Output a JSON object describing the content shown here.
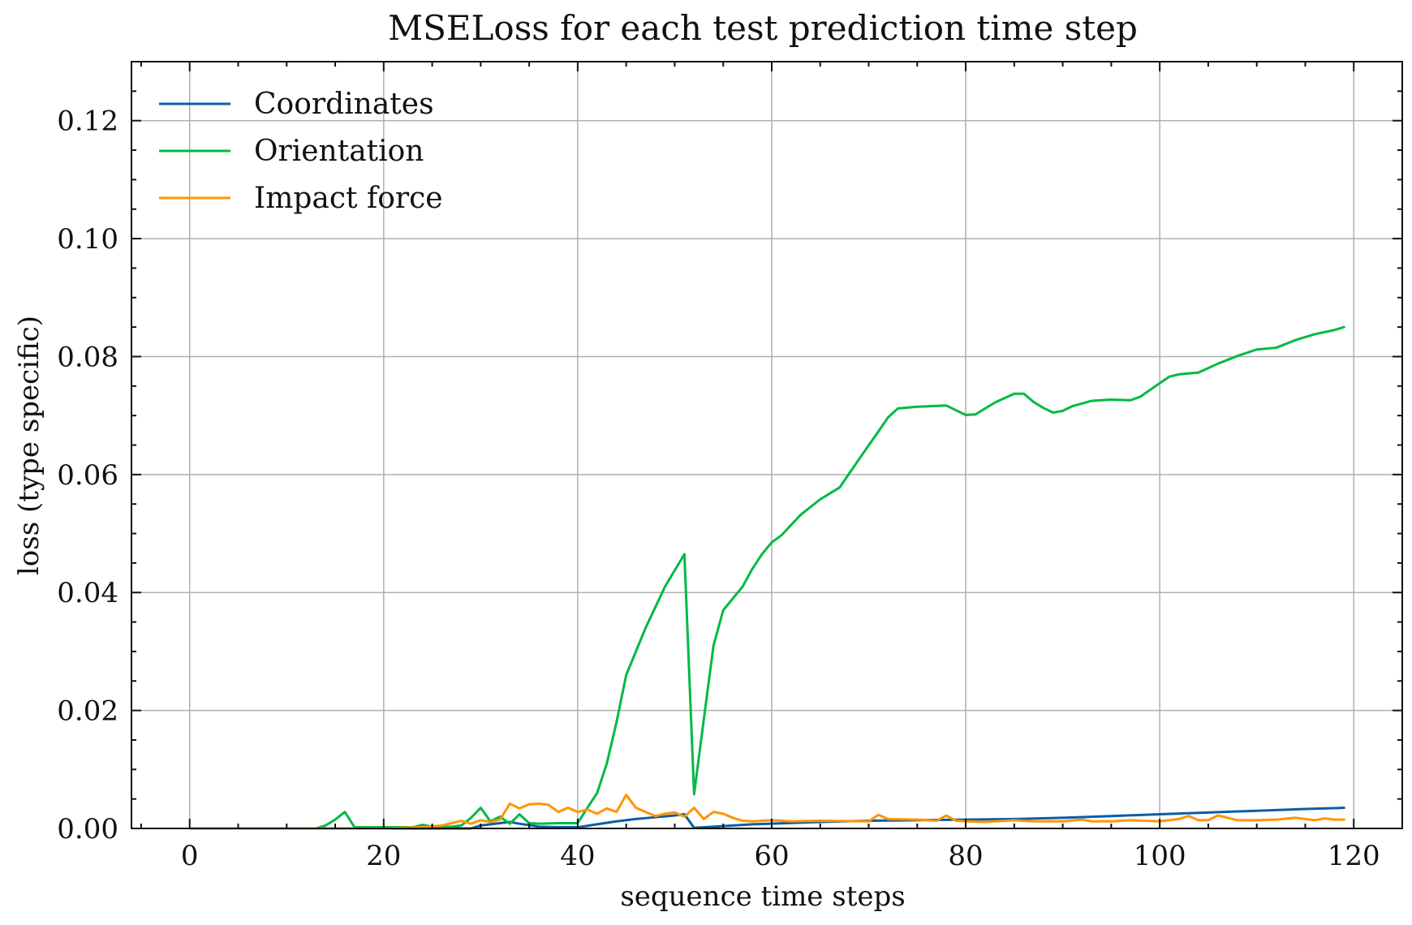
{
  "chart_data": {
    "type": "line",
    "title": "MSELoss for each test prediction time step",
    "xlabel": "sequence time steps",
    "ylabel": "loss (type specific)",
    "xlim": [
      -6,
      125
    ],
    "ylim": [
      0,
      0.13
    ],
    "xticks": [
      0,
      20,
      40,
      60,
      80,
      100,
      120
    ],
    "yticks": [
      0.0,
      0.02,
      0.04,
      0.06,
      0.08,
      0.1,
      0.12
    ],
    "xtick_labels": [
      "0",
      "20",
      "40",
      "60",
      "80",
      "100",
      "120"
    ],
    "ytick_labels": [
      "0.00",
      "0.02",
      "0.04",
      "0.06",
      "0.08",
      "0.10",
      "0.12"
    ],
    "grid": true,
    "legend_position": "top-left",
    "series": [
      {
        "name": "Coordinates",
        "color": "#0C5DA5",
        "x": [
          0,
          10,
          20,
          26,
          29,
          30,
          33,
          34,
          36,
          38,
          40,
          42,
          44,
          46,
          48,
          50,
          51,
          52,
          54,
          56,
          58,
          60,
          65,
          70,
          75,
          80,
          85,
          90,
          95,
          100,
          105,
          110,
          115,
          119
        ],
        "y": [
          0,
          0,
          0,
          0,
          0,
          0.0005,
          0.0011,
          0.0008,
          0.0003,
          0.0002,
          0.0002,
          0.0007,
          0.0012,
          0.0016,
          0.0019,
          0.0022,
          0.0024,
          0.0001,
          0.0003,
          0.0005,
          0.0007,
          0.0008,
          0.0011,
          0.0013,
          0.0014,
          0.0015,
          0.0016,
          0.0018,
          0.0021,
          0.0024,
          0.0027,
          0.003,
          0.0033,
          0.0035
        ]
      },
      {
        "name": "Orientation",
        "color": "#00B945",
        "x": [
          0,
          5,
          10,
          13,
          14,
          15,
          16,
          17,
          20,
          23,
          24,
          25,
          27,
          28,
          29,
          30,
          31,
          32,
          33,
          34,
          35,
          36,
          38,
          40,
          41,
          42,
          43,
          44,
          45,
          47,
          49,
          51,
          52,
          53,
          54,
          55,
          57,
          58,
          59,
          60,
          61,
          63,
          65,
          67,
          69,
          71,
          72,
          73,
          75,
          78,
          80,
          81,
          83,
          85,
          86,
          87,
          88,
          89,
          90,
          91,
          93,
          95,
          97,
          98,
          100,
          101,
          102,
          104,
          106,
          108,
          110,
          112,
          114,
          116,
          118,
          119
        ],
        "y": [
          0,
          0,
          0,
          0,
          0.0005,
          0.0015,
          0.0028,
          0.0002,
          0.0002,
          0.0002,
          0.0006,
          0.0003,
          0.0003,
          0.0005,
          0.0018,
          0.0035,
          0.0012,
          0.002,
          0.0008,
          0.0024,
          0.0009,
          0.0008,
          0.0009,
          0.0009,
          0.0035,
          0.006,
          0.011,
          0.018,
          0.026,
          0.034,
          0.041,
          0.0465,
          0.0058,
          0.0185,
          0.031,
          0.037,
          0.041,
          0.044,
          0.0465,
          0.0485,
          0.0497,
          0.0532,
          0.0558,
          0.0578,
          0.0626,
          0.0673,
          0.0697,
          0.0712,
          0.0715,
          0.0717,
          0.0701,
          0.0702,
          0.0722,
          0.0737,
          0.0737,
          0.0723,
          0.0713,
          0.0705,
          0.0708,
          0.0716,
          0.0725,
          0.0727,
          0.0726,
          0.0732,
          0.0755,
          0.0766,
          0.077,
          0.0773,
          0.0788,
          0.0801,
          0.0812,
          0.0815,
          0.0828,
          0.0838,
          0.0845,
          0.085
        ]
      },
      {
        "name": "Impact force",
        "color": "#FF9500",
        "x": [
          0,
          10,
          20,
          24,
          26,
          28,
          29,
          30,
          31,
          32,
          33,
          34,
          35,
          36,
          37,
          38,
          39,
          40,
          41,
          42,
          43,
          44,
          45,
          46,
          47,
          48,
          49,
          50,
          51,
          52,
          53,
          54,
          55,
          56,
          57,
          58,
          60,
          62,
          65,
          70,
          71,
          72,
          75,
          77,
          78,
          79,
          80,
          82,
          85,
          87,
          90,
          92,
          93,
          95,
          97,
          100,
          102,
          103,
          104,
          105,
          106,
          108,
          110,
          112,
          114,
          116,
          117,
          118,
          119
        ],
        "y": [
          0,
          0,
          0,
          0.0002,
          0.0005,
          0.0013,
          0.0008,
          0.0014,
          0.0011,
          0.0015,
          0.0042,
          0.0034,
          0.0041,
          0.0042,
          0.004,
          0.0028,
          0.0035,
          0.0028,
          0.0032,
          0.0025,
          0.0034,
          0.0028,
          0.0057,
          0.0035,
          0.0028,
          0.0021,
          0.0025,
          0.0027,
          0.002,
          0.0035,
          0.0016,
          0.0028,
          0.0025,
          0.0018,
          0.0013,
          0.0012,
          0.0014,
          0.0012,
          0.0013,
          0.0012,
          0.0023,
          0.0016,
          0.0015,
          0.0013,
          0.0022,
          0.0013,
          0.0012,
          0.0011,
          0.0014,
          0.0012,
          0.0012,
          0.0015,
          0.0012,
          0.0012,
          0.0014,
          0.0012,
          0.0016,
          0.0021,
          0.0014,
          0.0014,
          0.0022,
          0.0014,
          0.0014,
          0.0015,
          0.0018,
          0.0014,
          0.0017,
          0.0015,
          0.0015
        ]
      }
    ]
  }
}
